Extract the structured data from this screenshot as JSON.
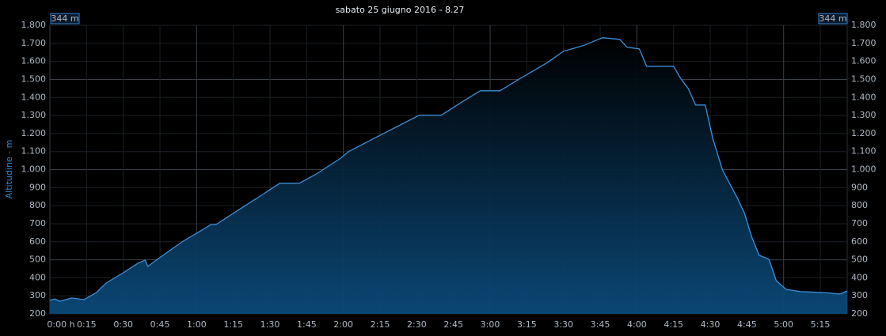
{
  "chart_data": {
    "type": "area",
    "title": "sabato 25 giugno 2016 - 8.27",
    "y_label": "Altitudine - m",
    "annotations": [
      "344 m",
      "344 m"
    ],
    "color": "#3b8fd8",
    "grid": true,
    "xlim": [
      0,
      326
    ],
    "ylim": [
      200,
      1800
    ],
    "xticks": [
      {
        "value": 0,
        "label": "0:00 h"
      },
      {
        "value": 15,
        "label": "0:15"
      },
      {
        "value": 30,
        "label": "0:30"
      },
      {
        "value": 45,
        "label": "0:45"
      },
      {
        "value": 60,
        "label": "1:00"
      },
      {
        "value": 75,
        "label": "1:15"
      },
      {
        "value": 90,
        "label": "1:30"
      },
      {
        "value": 105,
        "label": "1:45"
      },
      {
        "value": 120,
        "label": "2:00"
      },
      {
        "value": 135,
        "label": "2:15"
      },
      {
        "value": 150,
        "label": "2:30"
      },
      {
        "value": 165,
        "label": "2:45"
      },
      {
        "value": 180,
        "label": "3:00"
      },
      {
        "value": 195,
        "label": "3:15"
      },
      {
        "value": 210,
        "label": "3:30"
      },
      {
        "value": 225,
        "label": "3:45"
      },
      {
        "value": 240,
        "label": "4:00"
      },
      {
        "value": 255,
        "label": "4:15"
      },
      {
        "value": 270,
        "label": "4:30"
      },
      {
        "value": 285,
        "label": "4:45"
      },
      {
        "value": 300,
        "label": "5:00"
      },
      {
        "value": 315,
        "label": "5:15"
      }
    ],
    "yticks": [
      200,
      300,
      400,
      500,
      600,
      700,
      800,
      900,
      {
        "value": 1000,
        "label": "1.000"
      },
      {
        "value": 1100,
        "label": "1.100"
      },
      {
        "value": 1200,
        "label": "1.200"
      },
      {
        "value": 1300,
        "label": "1.300"
      },
      {
        "value": 1400,
        "label": "1.400"
      },
      {
        "value": 1500,
        "label": "1.500"
      },
      {
        "value": 1600,
        "label": "1.600"
      },
      {
        "value": 1700,
        "label": "1.700"
      },
      {
        "value": 1800,
        "label": "1.800"
      }
    ],
    "x": [
      0,
      2,
      4,
      9,
      14,
      19,
      23,
      30,
      36,
      39,
      40,
      44,
      54,
      66,
      68,
      77,
      87,
      90,
      94,
      102,
      109,
      119,
      122,
      132,
      139,
      151,
      160,
      168,
      176,
      184,
      192,
      203,
      210,
      218,
      226,
      233,
      236,
      241,
      244,
      255,
      258,
      261,
      264,
      268,
      271,
      275,
      281,
      284,
      287,
      290,
      294,
      297,
      301,
      307,
      317,
      323,
      326
    ],
    "values": [
      275,
      283,
      270,
      288,
      279,
      318,
      371,
      428,
      481,
      498,
      463,
      503,
      599,
      696,
      696,
      775,
      862,
      889,
      924,
      924,
      976,
      1064,
      1099,
      1169,
      1218,
      1301,
      1301,
      1371,
      1437,
      1437,
      1503,
      1590,
      1656,
      1687,
      1731,
      1722,
      1678,
      1669,
      1573,
      1573,
      1503,
      1450,
      1358,
      1358,
      1174,
      998,
      845,
      757,
      625,
      525,
      503,
      384,
      336,
      323,
      318,
      310,
      327
    ]
  }
}
